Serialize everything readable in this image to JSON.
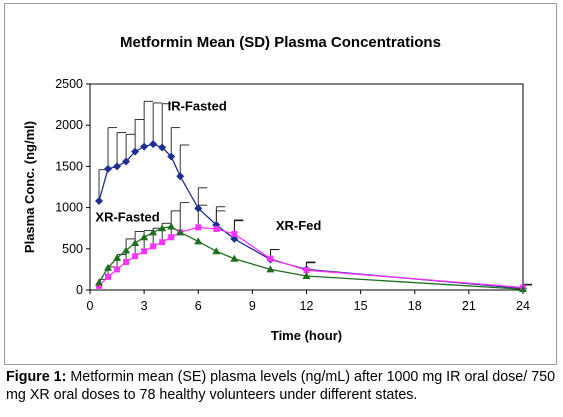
{
  "caption": {
    "lead": "Figure 1:",
    "text": " Metformin mean (SE) plasma levels (ng/mL) after 1000 mg IR oral dose/ 750 mg XR oral doses to 78 healthy volunteers under different states."
  },
  "chart_data": {
    "type": "line",
    "title": "Metformin Mean (SD) Plasma Concentrations",
    "xlabel": "Time (hour)",
    "ylabel": "Plasma Conc. (ng/ml)",
    "xlim": [
      0,
      24
    ],
    "ylim": [
      0,
      2500
    ],
    "x_ticks": [
      0,
      3,
      6,
      9,
      12,
      15,
      18,
      21,
      24
    ],
    "y_ticks": [
      0,
      500,
      1000,
      1500,
      2000,
      2500
    ],
    "grid": false,
    "legend": "none",
    "series": [
      {
        "name": "IR-Fasted",
        "color": "#1f2f8f",
        "marker": "diamond",
        "x": [
          0.5,
          1,
          1.5,
          2,
          2.5,
          3,
          3.5,
          4,
          4.5,
          5,
          6,
          7,
          8,
          10,
          12,
          24
        ],
        "y": [
          1080,
          1470,
          1500,
          1560,
          1680,
          1740,
          1770,
          1730,
          1620,
          1380,
          990,
          790,
          620,
          370,
          250,
          20
        ],
        "error_up": [
          380,
          500,
          410,
          330,
          390,
          550,
          500,
          530,
          350,
          380,
          250,
          220,
          230,
          120,
          90,
          40
        ]
      },
      {
        "name": "XR-Fasted",
        "color": "#ff33ff",
        "marker": "square",
        "x": [
          0.5,
          1,
          1.5,
          2,
          2.5,
          3,
          3.5,
          4,
          4.5,
          5,
          6,
          7,
          8,
          10,
          12,
          24
        ],
        "y": [
          50,
          160,
          250,
          340,
          410,
          470,
          530,
          580,
          640,
          700,
          760,
          740,
          680,
          380,
          240,
          30
        ],
        "error_up": [
          80,
          120,
          180,
          280,
          300,
          250,
          220,
          230,
          320,
          360,
          270,
          220,
          160,
          110,
          90,
          40
        ]
      },
      {
        "name": "XR-Fed",
        "color": "#1e6e1e",
        "marker": "triangle",
        "x": [
          0.5,
          1,
          1.5,
          2,
          2.5,
          3,
          3.5,
          4,
          4.5,
          5,
          6,
          7,
          8,
          10,
          12,
          24
        ],
        "y": [
          90,
          270,
          390,
          480,
          570,
          640,
          700,
          750,
          770,
          700,
          590,
          470,
          380,
          250,
          170,
          10
        ],
        "error_up": [
          0,
          0,
          0,
          0,
          0,
          0,
          0,
          0,
          0,
          0,
          0,
          0,
          0,
          0,
          0,
          0
        ]
      }
    ],
    "annotations": [
      {
        "text": "IR-Fasted",
        "x": 4.3,
        "y": 2180
      },
      {
        "text": "XR-Fasted",
        "x": 0.3,
        "y": 830
      },
      {
        "text": "XR-Fed",
        "x": 10.3,
        "y": 730
      }
    ]
  }
}
